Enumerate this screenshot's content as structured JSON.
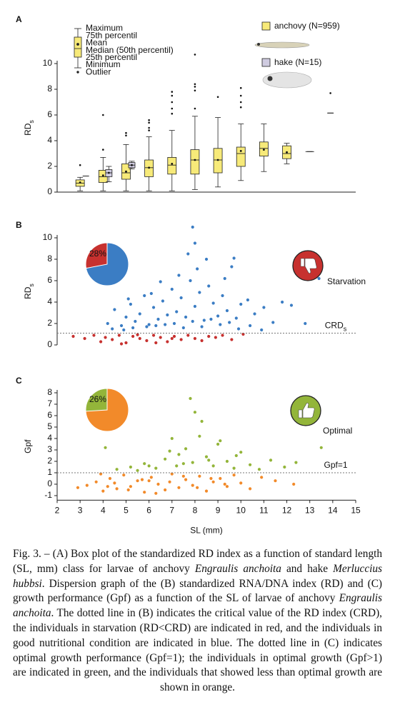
{
  "chart_data": [
    {
      "type": "box",
      "panel": "A",
      "ylabel": [
        "RD",
        "s"
      ],
      "xlim": [
        2,
        15
      ],
      "ylim": [
        0,
        10
      ],
      "yticks": [
        0,
        2,
        4,
        6,
        8,
        10
      ],
      "key": [
        "Maximum",
        "75th percentil",
        "Mean",
        "Median (50th percentil)",
        "25th percentil",
        "Minimum",
        "Outlier"
      ],
      "series": [
        {
          "name": "anchovy (N=959)",
          "color": "#f7ea79",
          "boxes": [
            {
              "x": 3,
              "min": 0.1,
              "q1": 0.45,
              "median": 0.7,
              "q3": 0.95,
              "max": 1.15,
              "mean": 0.75,
              "outliers": [
                2.1
              ]
            },
            {
              "x": 4,
              "min": 0.1,
              "q1": 0.75,
              "median": 1.2,
              "q3": 1.7,
              "max": 2.7,
              "mean": 1.3,
              "outliers": [
                3.3,
                6.0
              ]
            },
            {
              "x": 5,
              "min": 0.1,
              "q1": 1.0,
              "median": 1.5,
              "q3": 2.2,
              "max": 3.7,
              "mean": 1.6,
              "outliers": [
                4.4,
                4.6
              ]
            },
            {
              "x": 6,
              "min": 0.1,
              "q1": 1.2,
              "median": 1.9,
              "q3": 2.5,
              "max": 4.3,
              "mean": 1.9,
              "outliers": [
                4.8,
                5.0,
                5.4,
                5.6
              ]
            },
            {
              "x": 7,
              "min": 0.1,
              "q1": 1.4,
              "median": 2.1,
              "q3": 2.7,
              "max": 4.8,
              "mean": 2.2,
              "outliers": [
                6.1,
                6.5,
                7.0,
                7.5,
                7.8
              ]
            },
            {
              "x": 8,
              "min": 0.2,
              "q1": 1.4,
              "median": 2.5,
              "q3": 3.3,
              "max": 5.9,
              "mean": 2.5,
              "outliers": [
                6.5,
                7.9,
                8.2,
                8.4,
                10.7
              ]
            },
            {
              "x": 9,
              "min": 0.4,
              "q1": 1.5,
              "median": 2.5,
              "q3": 3.4,
              "max": 5.8,
              "mean": 2.5,
              "outliers": [
                7.4
              ]
            },
            {
              "x": 10,
              "min": 0.9,
              "q1": 2.0,
              "median": 3.0,
              "q3": 3.5,
              "max": 5.3,
              "mean": 3.2,
              "outliers": [
                6.6,
                7.0,
                7.5,
                8.1
              ]
            },
            {
              "x": 11,
              "min": 1.6,
              "q1": 2.8,
              "median": 3.4,
              "q3": 3.9,
              "max": 5.3,
              "mean": 3.3,
              "outliers": []
            },
            {
              "x": 12,
              "min": 2.2,
              "q1": 2.6,
              "median": 3.0,
              "q3": 3.6,
              "max": 3.8,
              "mean": 3.1,
              "outliers": []
            },
            {
              "x": 13,
              "min": 3.15,
              "q1": 3.15,
              "median": 3.15,
              "q3": 3.15,
              "max": 3.15,
              "outliers": []
            }
          ]
        },
        {
          "name": "hake (N=15)",
          "color": "#cfcbe0",
          "boxes": [
            {
              "x": 3.25,
              "min": 1.25,
              "q1": 1.25,
              "median": 1.25,
              "q3": 1.25,
              "max": 1.25,
              "outliers": []
            },
            {
              "x": 4.25,
              "min": 0.8,
              "q1": 1.2,
              "median": 1.5,
              "q3": 1.75,
              "max": 2.0,
              "mean": 1.5,
              "outliers": []
            },
            {
              "x": 5.25,
              "min": 1.8,
              "q1": 1.9,
              "median": 2.1,
              "q3": 2.3,
              "max": 2.4,
              "mean": 2.1,
              "outliers": []
            },
            {
              "x": 13.9,
              "min": 6.15,
              "q1": 6.15,
              "median": 6.15,
              "q3": 6.15,
              "max": 6.15,
              "outliers": [
                7.7
              ]
            }
          ]
        }
      ]
    },
    {
      "type": "scatter",
      "panel": "B",
      "ylabel": [
        "RD",
        "s"
      ],
      "xlim": [
        2,
        15
      ],
      "ylim": [
        0,
        10
      ],
      "yticks": [
        0,
        2,
        4,
        6,
        8,
        10
      ],
      "ref_line": {
        "value": 1.1,
        "label": [
          "CRD",
          "s"
        ]
      },
      "pie": {
        "values": [
          28
        ],
        "value_labels": [
          "28%"
        ],
        "color": "#c7312f",
        "rest_color": "#3b7dc4"
      },
      "icon": {
        "label": "Starvation",
        "color": "#c7312f",
        "kind": "down"
      },
      "series": [
        {
          "color": "#3b7dc4",
          "x": [
            4.2,
            4.5,
            4.8,
            5.0,
            5.2,
            5.4,
            5.6,
            5.8,
            6.0,
            6.2,
            6.4,
            6.6,
            6.8,
            7.0,
            7.2,
            7.4,
            7.6,
            7.8,
            8.0,
            8.2,
            8.4,
            8.6,
            8.8,
            9.0,
            9.2,
            9.4,
            9.6,
            9.8,
            10.0,
            10.3,
            10.6,
            11.0,
            11.4,
            11.8,
            12.2,
            12.8,
            13.4,
            4.4,
            4.9,
            5.3,
            5.9,
            6.3,
            6.7,
            7.1,
            7.5,
            7.9,
            8.3,
            8.7,
            9.1,
            9.5,
            9.9,
            10.4,
            10.9,
            6.5,
            7.3,
            7.7,
            8.1,
            8.5,
            9.3,
            9.7,
            7.9,
            8.0,
            5.1,
            6.1
          ],
          "values": [
            2.0,
            3.3,
            1.8,
            2.6,
            3.8,
            2.2,
            2.9,
            4.6,
            1.9,
            3.5,
            2.4,
            4.1,
            2.8,
            5.2,
            3.1,
            4.4,
            2.6,
            6.0,
            3.6,
            4.9,
            2.3,
            5.5,
            3.9,
            2.7,
            4.6,
            3.2,
            7.3,
            2.5,
            3.8,
            4.2,
            2.9,
            3.5,
            2.1,
            4.0,
            3.7,
            2.0,
            6.2,
            1.5,
            1.4,
            1.6,
            1.7,
            1.8,
            1.9,
            2.0,
            1.6,
            2.2,
            1.7,
            2.4,
            1.9,
            2.1,
            1.5,
            1.8,
            1.4,
            5.9,
            6.5,
            8.5,
            7.1,
            8.0,
            6.2,
            8.1,
            11.0,
            9.5,
            4.3,
            4.8
          ]
        },
        {
          "color": "#c7312f",
          "x": [
            2.7,
            3.2,
            3.6,
            3.9,
            4.1,
            4.4,
            4.7,
            5.0,
            5.3,
            5.6,
            5.9,
            6.2,
            6.5,
            6.8,
            7.1,
            7.4,
            7.7,
            8.0,
            8.3,
            8.6,
            8.9,
            9.2,
            9.6,
            10.1,
            4.8,
            5.5,
            6.3,
            7.0
          ],
          "values": [
            0.8,
            0.6,
            0.9,
            0.3,
            0.7,
            0.5,
            0.9,
            0.2,
            0.8,
            0.6,
            0.4,
            0.9,
            0.7,
            0.3,
            0.8,
            0.5,
            0.9,
            0.6,
            0.4,
            0.8,
            0.7,
            0.9,
            0.5,
            1.0,
            0.1,
            0.95,
            0.2,
            0.6
          ]
        }
      ]
    },
    {
      "type": "scatter",
      "panel": "C",
      "ylabel": [
        "Gpf"
      ],
      "xlim": [
        2,
        15
      ],
      "ylim": [
        -1.4,
        8
      ],
      "yticks": [
        -1,
        0,
        1,
        2,
        3,
        4,
        5,
        6,
        7,
        8
      ],
      "xticks": [
        2,
        3,
        4,
        5,
        6,
        7,
        8,
        9,
        10,
        11,
        12,
        13,
        14,
        15
      ],
      "xlabel": "SL (mm)",
      "ref_line": {
        "value": 1,
        "label": [
          "Gpf=1"
        ]
      },
      "pie": {
        "values": [
          26
        ],
        "value_labels": [
          "26%"
        ],
        "color": "#93b53a",
        "rest_color": "#f28a2a"
      },
      "icon": {
        "label": "Optimal",
        "color": "#93b53a",
        "kind": "up"
      },
      "series": [
        {
          "color": "#93b53a",
          "x": [
            4.1,
            4.6,
            5.2,
            5.8,
            6.3,
            6.7,
            7.0,
            7.3,
            7.6,
            7.9,
            8.2,
            8.5,
            8.8,
            9.1,
            9.4,
            9.7,
            10.0,
            10.4,
            10.8,
            11.3,
            11.9,
            12.4,
            13.5,
            6.9,
            7.5,
            7.8,
            8.0,
            8.3,
            9.0,
            9.8,
            7.2,
            8.6,
            5.5,
            6.0
          ],
          "values": [
            3.2,
            1.3,
            1.5,
            1.8,
            1.4,
            2.2,
            4.0,
            2.6,
            3.1,
            1.9,
            4.2,
            2.4,
            1.6,
            3.8,
            2.0,
            1.4,
            2.8,
            1.7,
            1.3,
            2.1,
            1.5,
            1.9,
            3.2,
            2.9,
            1.8,
            7.5,
            6.3,
            5.5,
            3.5,
            2.5,
            1.6,
            2.1,
            1.2,
            1.6
          ]
        },
        {
          "color": "#f28a2a",
          "x": [
            2.9,
            3.3,
            3.7,
            4.0,
            4.3,
            4.6,
            4.9,
            5.2,
            5.5,
            5.8,
            6.1,
            6.4,
            6.7,
            7.0,
            7.3,
            7.6,
            7.9,
            8.2,
            8.5,
            8.8,
            9.1,
            9.4,
            9.7,
            10.0,
            10.4,
            10.9,
            11.5,
            12.3,
            3.9,
            4.5,
            5.1,
            5.7,
            6.3,
            6.9,
            7.5,
            8.1,
            8.7,
            9.3,
            4.2,
            6.0
          ],
          "values": [
            -0.3,
            -0.1,
            0.2,
            -0.6,
            0.5,
            -0.4,
            0.8,
            -0.2,
            0.3,
            -0.7,
            0.6,
            0.0,
            -0.5,
            0.9,
            -0.3,
            0.4,
            -0.1,
            0.7,
            -0.6,
            0.2,
            0.5,
            -0.2,
            0.8,
            0.1,
            -0.4,
            0.6,
            0.3,
            0.0,
            0.9,
            0.1,
            -0.5,
            0.4,
            -0.8,
            0.2,
            0.7,
            -0.3,
            0.5,
            0.0,
            -0.2,
            0.3
          ]
        }
      ]
    }
  ],
  "caption": [
    "Fig. 3. – (A) Box plot of the standardized RD index as a function of standard length (SL, mm) class for larvae of anchovy ",
    "Engraulis anchoita",
    " and hake ",
    "Merluccius hubbsi",
    ". Dispersion graph of the (B) standardized RNA/DNA index (RD) and (C) growth performance (Gpf) as a function of the SL of larvae of anchovy ",
    "Engraulis anchoita",
    ". The dotted line in (B) indicates the critical value of the RD index (CRD), the individuals in starvation (RD<CRD) are indicated in red, and the individuals in good nutritional condition are indicated in blue. The dotted line in (C) indicates optimal growth performance (Gpf=1); the individuals in optimal growth (Gpf>1) are indicated in green, and the individuals that showed less than optimal growth are shown in orange."
  ]
}
